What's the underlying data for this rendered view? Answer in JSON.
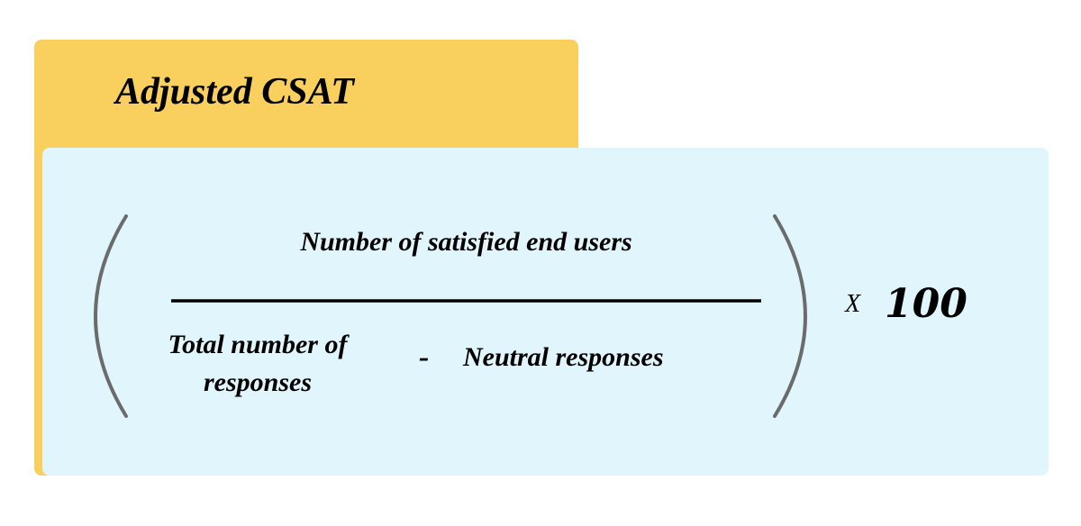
{
  "title": "Adjusted CSAT",
  "formula": {
    "numerator": "Number of satisfied end users",
    "denominator_term1": "Total number of responses",
    "denominator_operator": "-",
    "denominator_term2": "Neutral responses",
    "multiply_sign": "X",
    "multiplier": "100"
  },
  "colors": {
    "title_panel": "#F9D05E",
    "formula_panel": "#E1F6FC",
    "parenthesis": "#6b6b6b",
    "text": "#000000"
  }
}
